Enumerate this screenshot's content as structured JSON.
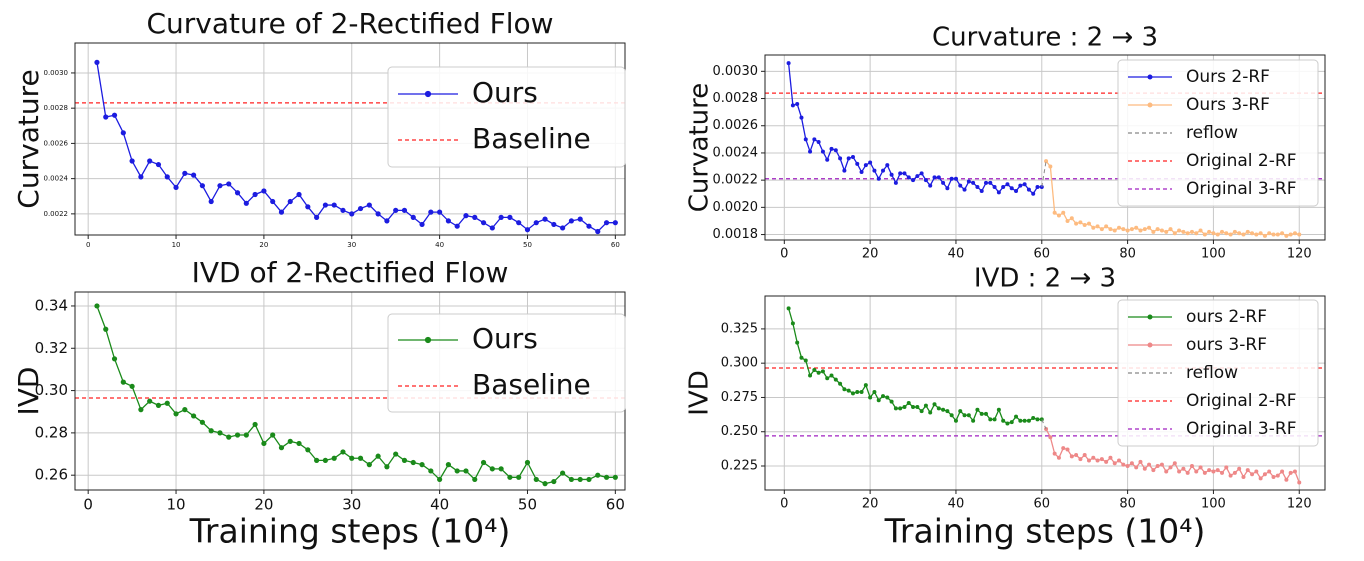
{
  "chart_data": [
    {
      "type": "line",
      "title": "Curvature of 2-Rectified Flow",
      "ylabel": "Curvature",
      "x": [
        1,
        2,
        3,
        4,
        5,
        6,
        7,
        8,
        9,
        10,
        11,
        12,
        13,
        14,
        15,
        16,
        17,
        18,
        19,
        20,
        21,
        22,
        23,
        24,
        25,
        26,
        27,
        28,
        29,
        30,
        31,
        32,
        33,
        34,
        35,
        36,
        37,
        38,
        39,
        40,
        41,
        42,
        43,
        44,
        45,
        46,
        47,
        48,
        49,
        50,
        51,
        52,
        53,
        54,
        55,
        56,
        57,
        58,
        59,
        60
      ],
      "series": [
        {
          "name": "Ours",
          "color": "#1c1ce0",
          "values": [
            0.00306,
            0.00275,
            0.00276,
            0.00266,
            0.0025,
            0.00241,
            0.0025,
            0.00248,
            0.00241,
            0.00235,
            0.00243,
            0.00242,
            0.00236,
            0.00227,
            0.00236,
            0.00237,
            0.00232,
            0.00226,
            0.00231,
            0.00233,
            0.00227,
            0.00221,
            0.00227,
            0.00231,
            0.00224,
            0.00218,
            0.00225,
            0.00225,
            0.00222,
            0.0022,
            0.00223,
            0.00225,
            0.0022,
            0.00216,
            0.00222,
            0.00222,
            0.00218,
            0.00214,
            0.00221,
            0.00221,
            0.00216,
            0.00213,
            0.00219,
            0.00218,
            0.00215,
            0.00212,
            0.00218,
            0.00218,
            0.00215,
            0.00211,
            0.00215,
            0.00217,
            0.00214,
            0.00212,
            0.00216,
            0.00217,
            0.00213,
            0.0021,
            0.00215,
            0.00215
          ]
        }
      ],
      "hlines": [
        {
          "name": "Baseline",
          "value": 0.00283,
          "color": "#ff2020"
        }
      ],
      "xlim": [
        -1.5,
        61.1
      ],
      "xticks": [
        0,
        10,
        20,
        30,
        40,
        50,
        60
      ],
      "ylim": [
        0.00208,
        0.00317
      ],
      "yticks": [
        0.0022,
        0.0024,
        0.0026,
        0.0028,
        {
          "value": 0.003,
          "label": "0.0030"
        }
      ],
      "grid": true
    },
    {
      "type": "line",
      "title": "Curvature : 2 → 3",
      "ylabel": "Curvature",
      "series": [
        {
          "name": "Ours 2-RF",
          "color": "#1c1ce0",
          "x": [
            1,
            2,
            3,
            4,
            5,
            6,
            7,
            8,
            9,
            10,
            11,
            12,
            13,
            14,
            15,
            16,
            17,
            18,
            19,
            20,
            21,
            22,
            23,
            24,
            25,
            26,
            27,
            28,
            29,
            30,
            31,
            32,
            33,
            34,
            35,
            36,
            37,
            38,
            39,
            40,
            41,
            42,
            43,
            44,
            45,
            46,
            47,
            48,
            49,
            50,
            51,
            52,
            53,
            54,
            55,
            56,
            57,
            58,
            59,
            60
          ],
          "values": [
            0.00306,
            0.00275,
            0.00276,
            0.00266,
            0.0025,
            0.00241,
            0.0025,
            0.00248,
            0.00241,
            0.00235,
            0.00243,
            0.00242,
            0.00236,
            0.00227,
            0.00236,
            0.00237,
            0.00232,
            0.00226,
            0.00231,
            0.00233,
            0.00227,
            0.00221,
            0.00227,
            0.00231,
            0.00224,
            0.00218,
            0.00225,
            0.00225,
            0.00222,
            0.0022,
            0.00223,
            0.00225,
            0.0022,
            0.00216,
            0.00222,
            0.00222,
            0.00218,
            0.00214,
            0.00221,
            0.00221,
            0.00216,
            0.00213,
            0.00219,
            0.00218,
            0.00215,
            0.00212,
            0.00218,
            0.00218,
            0.00215,
            0.00211,
            0.00215,
            0.00217,
            0.00214,
            0.00212,
            0.00216,
            0.00217,
            0.00213,
            0.0021,
            0.00215,
            0.00215
          ]
        },
        {
          "name": "Ours 3-RF",
          "color": "#fdbb80",
          "x": [
            61,
            62,
            63,
            64,
            65,
            66,
            67,
            68,
            69,
            70,
            71,
            72,
            73,
            74,
            75,
            76,
            77,
            78,
            79,
            80,
            81,
            82,
            83,
            84,
            85,
            86,
            87,
            88,
            89,
            90,
            91,
            92,
            93,
            94,
            95,
            96,
            97,
            98,
            99,
            100,
            101,
            102,
            103,
            104,
            105,
            106,
            107,
            108,
            109,
            110,
            111,
            112,
            113,
            114,
            115,
            116,
            117,
            118,
            119,
            120
          ],
          "values": [
            0.00234,
            0.0023,
            0.00196,
            0.00194,
            0.00196,
            0.0019,
            0.00192,
            0.00188,
            0.00189,
            0.00187,
            0.00188,
            0.00185,
            0.00186,
            0.00184,
            0.00186,
            0.00184,
            0.00183,
            0.00185,
            0.00184,
            0.00183,
            0.00184,
            0.00185,
            0.00183,
            0.00184,
            0.00185,
            0.00182,
            0.00184,
            0.00183,
            0.00182,
            0.00184,
            0.00181,
            0.00183,
            0.00182,
            0.00181,
            0.00182,
            0.00181,
            0.00183,
            0.0018,
            0.00182,
            0.00181,
            0.0018,
            0.00182,
            0.00181,
            0.0018,
            0.00182,
            0.00181,
            0.0018,
            0.00182,
            0.00181,
            0.0018,
            0.00181,
            0.00179,
            0.00181,
            0.0018,
            0.0018,
            0.00181,
            0.00179,
            0.0018,
            0.00181,
            0.0018
          ]
        },
        {
          "name": "reflow",
          "color": "#888888",
          "dashed": true,
          "x": [
            60,
            61
          ],
          "values": [
            0.00215,
            0.00234
          ]
        }
      ],
      "hlines": [
        {
          "name": "Original 2-RF",
          "value": 0.00284,
          "color": "#ff2020"
        },
        {
          "name": "Original 3-RF",
          "value": 0.00221,
          "color": "#a020c0"
        }
      ],
      "xlim": [
        -4.5,
        126
      ],
      "xticks": [
        0,
        20,
        40,
        60,
        80,
        100,
        120
      ],
      "ylim": [
        0.00176,
        0.00312
      ],
      "yticks": [
        0.0018,
        {
          "value": 0.002,
          "label": "0.0020"
        },
        0.0022,
        0.0024,
        0.0026,
        0.0028,
        {
          "value": 0.003,
          "label": "0.0030"
        }
      ],
      "grid": true
    },
    {
      "type": "line",
      "title": "IVD of 2-Rectified Flow",
      "ylabel": "IVD",
      "xlabel": "Training steps (10⁴)",
      "x": [
        1,
        2,
        3,
        4,
        5,
        6,
        7,
        8,
        9,
        10,
        11,
        12,
        13,
        14,
        15,
        16,
        17,
        18,
        19,
        20,
        21,
        22,
        23,
        24,
        25,
        26,
        27,
        28,
        29,
        30,
        31,
        32,
        33,
        34,
        35,
        36,
        37,
        38,
        39,
        40,
        41,
        42,
        43,
        44,
        45,
        46,
        47,
        48,
        49,
        50,
        51,
        52,
        53,
        54,
        55,
        56,
        57,
        58,
        59,
        60
      ],
      "series": [
        {
          "name": "Ours",
          "color": "#1a8a1a",
          "values": [
            0.34,
            0.329,
            0.315,
            0.304,
            0.302,
            0.291,
            0.295,
            0.293,
            0.294,
            0.289,
            0.291,
            0.288,
            0.285,
            0.281,
            0.28,
            0.278,
            0.279,
            0.279,
            0.284,
            0.275,
            0.279,
            0.273,
            0.276,
            0.275,
            0.272,
            0.267,
            0.267,
            0.268,
            0.271,
            0.268,
            0.268,
            0.265,
            0.269,
            0.264,
            0.27,
            0.267,
            0.266,
            0.265,
            0.262,
            0.258,
            0.265,
            0.262,
            0.262,
            0.258,
            0.266,
            0.263,
            0.263,
            0.259,
            0.259,
            0.266,
            0.258,
            0.256,
            0.257,
            0.261,
            0.258,
            0.258,
            0.258,
            0.26,
            0.259,
            0.259
          ]
        }
      ],
      "hlines": [
        {
          "name": "Baseline",
          "value": 0.2965,
          "color": "#ff2020"
        }
      ],
      "xlim": [
        -1.5,
        61.1
      ],
      "xticks": [
        0,
        10,
        20,
        30,
        40,
        50,
        60
      ],
      "ylim": [
        0.253,
        0.3466
      ],
      "yticks": [
        0.26,
        0.28,
        {
          "value": 0.3,
          "label": "0.30"
        },
        0.32,
        0.34
      ],
      "grid": true
    },
    {
      "type": "line",
      "title": "IVD : 2 → 3",
      "ylabel": "IVD",
      "xlabel": "Training steps (10⁴)",
      "series": [
        {
          "name": "ours 2-RF",
          "color": "#1a8a1a",
          "x": [
            1,
            2,
            3,
            4,
            5,
            6,
            7,
            8,
            9,
            10,
            11,
            12,
            13,
            14,
            15,
            16,
            17,
            18,
            19,
            20,
            21,
            22,
            23,
            24,
            25,
            26,
            27,
            28,
            29,
            30,
            31,
            32,
            33,
            34,
            35,
            36,
            37,
            38,
            39,
            40,
            41,
            42,
            43,
            44,
            45,
            46,
            47,
            48,
            49,
            50,
            51,
            52,
            53,
            54,
            55,
            56,
            57,
            58,
            59,
            60
          ],
          "values": [
            0.34,
            0.329,
            0.315,
            0.304,
            0.302,
            0.291,
            0.295,
            0.293,
            0.294,
            0.289,
            0.291,
            0.288,
            0.285,
            0.281,
            0.28,
            0.278,
            0.279,
            0.279,
            0.284,
            0.275,
            0.279,
            0.273,
            0.276,
            0.275,
            0.272,
            0.267,
            0.267,
            0.268,
            0.271,
            0.268,
            0.268,
            0.265,
            0.269,
            0.264,
            0.27,
            0.267,
            0.266,
            0.265,
            0.262,
            0.258,
            0.265,
            0.262,
            0.262,
            0.258,
            0.266,
            0.263,
            0.263,
            0.259,
            0.259,
            0.266,
            0.258,
            0.256,
            0.257,
            0.261,
            0.258,
            0.258,
            0.258,
            0.26,
            0.259,
            0.259
          ]
        },
        {
          "name": "ours 3-RF",
          "color": "#ee8888",
          "x": [
            61,
            62,
            63,
            64,
            65,
            66,
            67,
            68,
            69,
            70,
            71,
            72,
            73,
            74,
            75,
            76,
            77,
            78,
            79,
            80,
            81,
            82,
            83,
            84,
            85,
            86,
            87,
            88,
            89,
            90,
            91,
            92,
            93,
            94,
            95,
            96,
            97,
            98,
            99,
            100,
            101,
            102,
            103,
            104,
            105,
            106,
            107,
            108,
            109,
            110,
            111,
            112,
            113,
            114,
            115,
            116,
            117,
            118,
            119,
            120
          ],
          "values": [
            0.252,
            0.246,
            0.234,
            0.231,
            0.238,
            0.237,
            0.232,
            0.233,
            0.23,
            0.233,
            0.229,
            0.231,
            0.229,
            0.23,
            0.228,
            0.231,
            0.227,
            0.229,
            0.226,
            0.225,
            0.227,
            0.224,
            0.228,
            0.223,
            0.226,
            0.222,
            0.225,
            0.226,
            0.221,
            0.224,
            0.227,
            0.221,
            0.223,
            0.22,
            0.225,
            0.221,
            0.224,
            0.22,
            0.222,
            0.221,
            0.222,
            0.22,
            0.224,
            0.218,
            0.22,
            0.223,
            0.217,
            0.222,
            0.219,
            0.221,
            0.216,
            0.219,
            0.221,
            0.217,
            0.218,
            0.221,
            0.215,
            0.22,
            0.221,
            0.213
          ]
        },
        {
          "name": "reflow",
          "color": "#888888",
          "dashed": true,
          "x": [
            60,
            61
          ],
          "values": [
            0.259,
            0.252
          ]
        }
      ],
      "hlines": [
        {
          "name": "Original 2-RF",
          "value": 0.2965,
          "color": "#ff2020"
        },
        {
          "name": "Original 3-RF",
          "value": 0.247,
          "color": "#a020c0"
        }
      ],
      "xlim": [
        -4.5,
        126
      ],
      "xticks": [
        0,
        20,
        40,
        60,
        80,
        100,
        120
      ],
      "ylim": [
        0.2075,
        0.349
      ],
      "yticks": [
        0.225,
        {
          "value": 0.25,
          "label": "0.250"
        },
        0.275,
        {
          "value": 0.3,
          "label": "0.300"
        },
        0.325
      ],
      "grid": true
    }
  ]
}
